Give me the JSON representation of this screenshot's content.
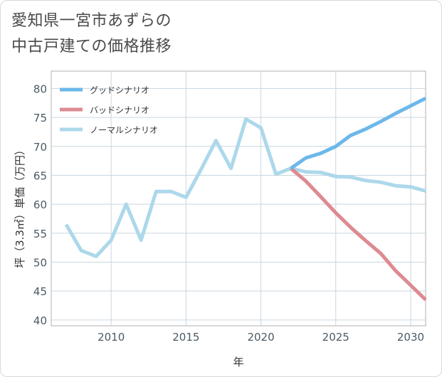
{
  "title_line1": "愛知県一宮市あずらの",
  "title_line2": "中古戸建ての価格推移",
  "chart_data": {
    "type": "line",
    "xlabel": "年",
    "ylabel": "坪（3.3㎡）単価（万円）",
    "xlim": [
      2006,
      2031
    ],
    "ylim": [
      39,
      83
    ],
    "xticks": [
      2010,
      2015,
      2020,
      2025,
      2030
    ],
    "yticks": [
      40,
      45,
      50,
      55,
      60,
      65,
      70,
      75,
      80
    ],
    "grid": true,
    "legend_position": "top-left",
    "series": [
      {
        "name": "グッドシナリオ",
        "color": "#6cb8ea",
        "x": [
          2022,
          2023,
          2024,
          2025,
          2026,
          2027,
          2028,
          2029,
          2030,
          2031
        ],
        "y": [
          66.2,
          68.0,
          68.8,
          70.0,
          71.9,
          73.0,
          74.3,
          75.7,
          77.0,
          78.3
        ]
      },
      {
        "name": "バッドシナリオ",
        "color": "#dd8a91",
        "x": [
          2022,
          2023,
          2024,
          2025,
          2026,
          2027,
          2028,
          2029,
          2030,
          2031
        ],
        "y": [
          66.2,
          64.0,
          61.3,
          58.5,
          56.0,
          53.7,
          51.5,
          48.5,
          46.0,
          43.5
        ]
      },
      {
        "name": "ノーマルシナリオ",
        "color": "#acd8ea",
        "x": [
          2007,
          2008,
          2009,
          2010,
          2011,
          2012,
          2013,
          2014,
          2015,
          2016,
          2017,
          2018,
          2019,
          2020,
          2021,
          2022,
          2023,
          2024,
          2025,
          2026,
          2027,
          2028,
          2029,
          2030,
          2031
        ],
        "y": [
          56.5,
          52.0,
          51.0,
          53.8,
          60.0,
          53.8,
          62.2,
          62.2,
          61.2,
          66.0,
          71.0,
          66.2,
          74.7,
          73.2,
          65.2,
          66.2,
          65.6,
          65.5,
          64.8,
          64.7,
          64.1,
          63.8,
          63.2,
          63.0,
          62.3
        ]
      }
    ]
  }
}
